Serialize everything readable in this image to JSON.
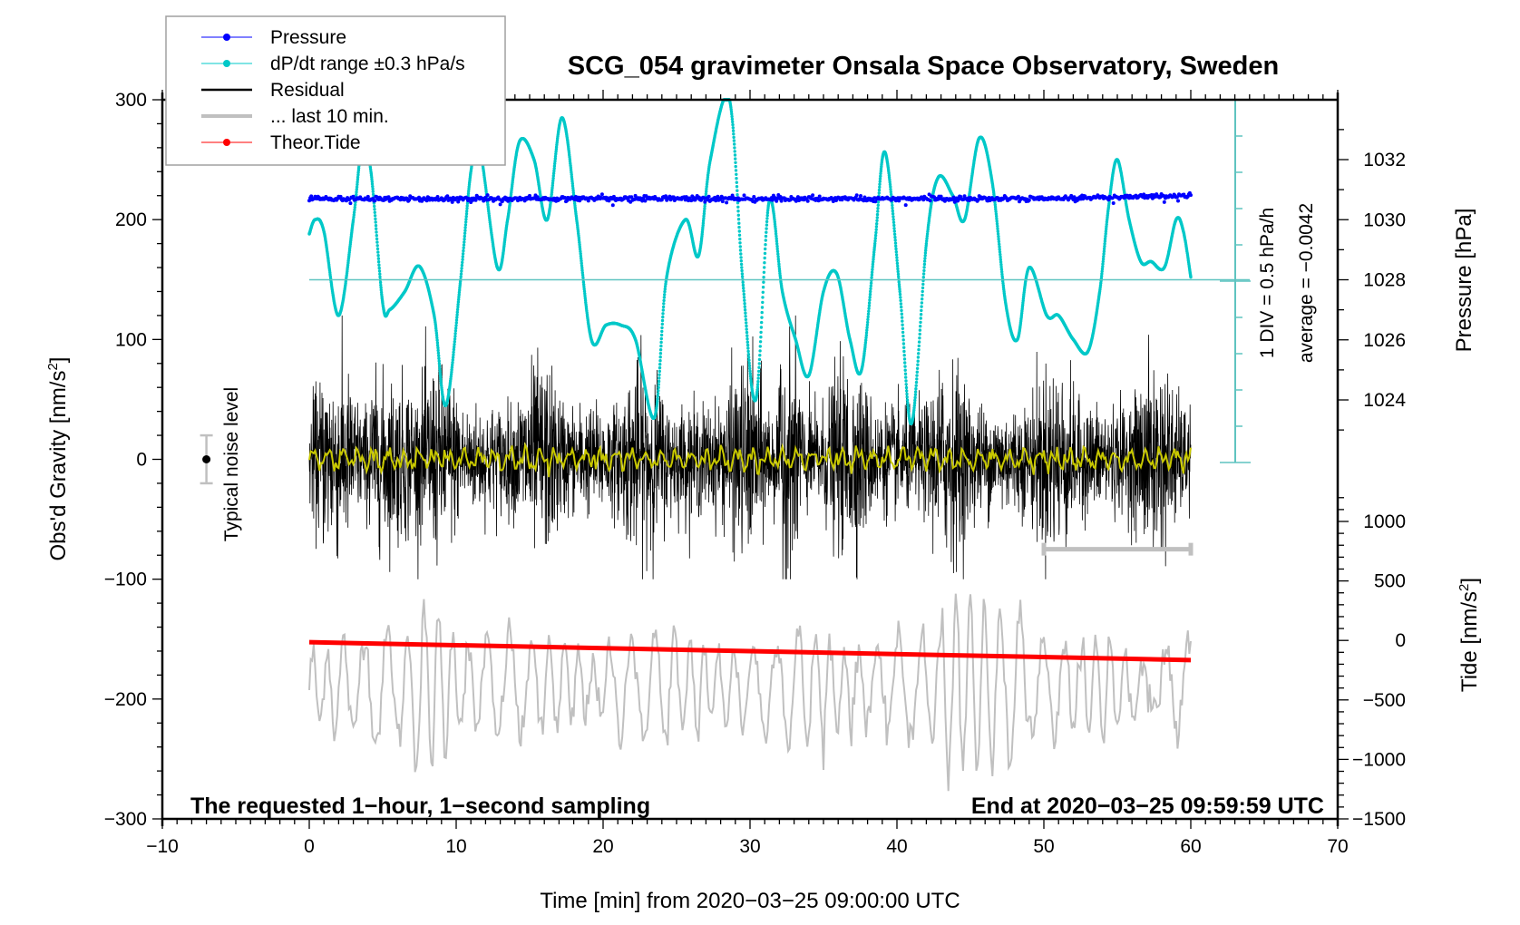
{
  "chart_data": {
    "type": "line",
    "title": "SCG_054 gravimeter Onsala Space Observatory, Sweden",
    "xlabel": "Time [min] from 2020−03−25 09:00:00 UTC",
    "ylabel_left": "Obs'd Gravity [nm/s²]",
    "ylabel_left_main": "Obs'd Gravity [nm/s",
    "ylabel_left_sup": "2",
    "ylabel_left_end": "]",
    "ylabel_right_pressure": "Pressure [hPa]",
    "ylabel_right_tide_main": "Tide [nm/s",
    "ylabel_right_tide_sup": "2",
    "ylabel_right_tide_end": "]",
    "xlim": [
      -10,
      70
    ],
    "ylim_gravity": [
      -300,
      300
    ],
    "ylim_tide": [
      -1500,
      1000
    ],
    "pressure_axis_range": [
      1024,
      1032
    ],
    "grid": false,
    "legend_position": "top-left",
    "x_ticks": [
      -10,
      0,
      10,
      20,
      30,
      40,
      50,
      60,
      70
    ],
    "x_tick_labels": [
      "−10",
      "0",
      "10",
      "20",
      "30",
      "40",
      "50",
      "60",
      "70"
    ],
    "gravity_ticks": [
      300,
      200,
      100,
      0,
      -100,
      -200,
      -300
    ],
    "gravity_tick_labels": [
      "300",
      "200",
      "100",
      "0",
      "−100",
      "−200",
      "−300"
    ],
    "pressure_ticks": [
      1032,
      1030,
      1028,
      1026,
      1024
    ],
    "pressure_tick_labels": [
      "1032",
      "1030",
      "1028",
      "1026",
      "1024"
    ],
    "tide_ticks": [
      1000,
      500,
      0,
      -500,
      -1000,
      -1500
    ],
    "tide_tick_labels": [
      "1000",
      "500",
      "0",
      "−500",
      "−1000",
      "−1500"
    ],
    "annotations": {
      "bottom_left": "The requested 1−hour, 1−second sampling",
      "bottom_right": "End at 2020−03−25 09:59:59 UTC",
      "div_label": "1 DIV = 0.5 hPa/h",
      "average_label": "average = −0.0042",
      "noise_label": "Typical noise level"
    },
    "noise_level": {
      "x": -7,
      "y": 0,
      "error": 20
    },
    "last10_bar": {
      "x_start": 50,
      "x_end": 60,
      "y": -75
    },
    "dpdt_zero_line_pressure": 1028,
    "legend": [
      {
        "label": "Pressure",
        "color": "#0000ff",
        "style": "line-dot"
      },
      {
        "label": "dP/dt range ±0.3 hPa/s",
        "color": "#00c8c8",
        "style": "line-dot"
      },
      {
        "label": "Residual",
        "color": "#000000",
        "style": "line"
      },
      {
        "label": "... last 10 min.",
        "color": "#c0c0c0",
        "style": "thick-line"
      },
      {
        "label": "Theor.Tide",
        "color": "#ff0000",
        "style": "line-dot"
      }
    ],
    "series": [
      {
        "name": "Pressure",
        "axis": "pressure",
        "color": "#0000ff",
        "x": [
          0,
          10,
          20,
          30,
          40,
          50,
          60
        ],
        "values": [
          1030.7,
          1030.7,
          1030.7,
          1030.7,
          1030.7,
          1030.7,
          1030.8
        ]
      },
      {
        "name": "dP/dt range ±0.3 hPa/s",
        "axis": "gravity",
        "color": "#00c8c8",
        "x": [
          0,
          0.4,
          1.0,
          2.0,
          3.0,
          3.6,
          4.2,
          5.0,
          5.5,
          6.5,
          7.5,
          8.5,
          9.3,
          10.3,
          11.0,
          11.6,
          12.8,
          13.5,
          14.3,
          15.3,
          16.2,
          17.2,
          18.2,
          19.2,
          20.2,
          21.2,
          22.2,
          23.5,
          24.3,
          25.6,
          26.5,
          27.3,
          28.6,
          29.5,
          30.4,
          31.3,
          32.2,
          33.1,
          34.0,
          35.0,
          35.9,
          36.8,
          37.6,
          38.5,
          39.2,
          40.2,
          41.0,
          42.0,
          42.8,
          43.8,
          44.6,
          45.6,
          46.5,
          47.4,
          48.2,
          49.0,
          50.2,
          51.0,
          52.0,
          53.0,
          53.8,
          54.4,
          55.0,
          55.8,
          56.6,
          57.3,
          58.2,
          59.0,
          59.5,
          60.0
        ],
        "values": [
          188,
          200,
          190,
          120,
          200,
          262,
          240,
          130,
          125,
          140,
          161,
          120,
          45,
          150,
          240,
          260,
          160,
          200,
          265,
          250,
          200,
          285,
          200,
          100,
          112,
          112,
          100,
          35,
          150,
          200,
          170,
          250,
          300,
          150,
          50,
          215,
          140,
          100,
          70,
          140,
          155,
          100,
          75,
          180,
          256,
          140,
          30,
          180,
          235,
          220,
          200,
          268,
          230,
          130,
          100,
          160,
          120,
          120,
          100,
          90,
          140,
          210,
          250,
          200,
          165,
          165,
          160,
          200,
          190,
          152
        ]
      },
      {
        "name": "Residual",
        "axis": "gravity",
        "color": "#000000",
        "x_range": [
          0,
          60
        ],
        "envelope": [
          -100,
          120
        ],
        "smoothed_color": "#c8c800",
        "smoothed_amplitude": 12
      },
      {
        "name": "... last 10 min.",
        "axis": "gravity",
        "color": "#c0c0c0",
        "x_range": [
          0,
          60
        ],
        "center": -190,
        "envelope": [
          -300,
          -100
        ]
      },
      {
        "name": "Theor.Tide",
        "axis": "tide",
        "color": "#ff0000",
        "x": [
          0,
          60
        ],
        "values": [
          -15,
          -165
        ]
      }
    ]
  }
}
